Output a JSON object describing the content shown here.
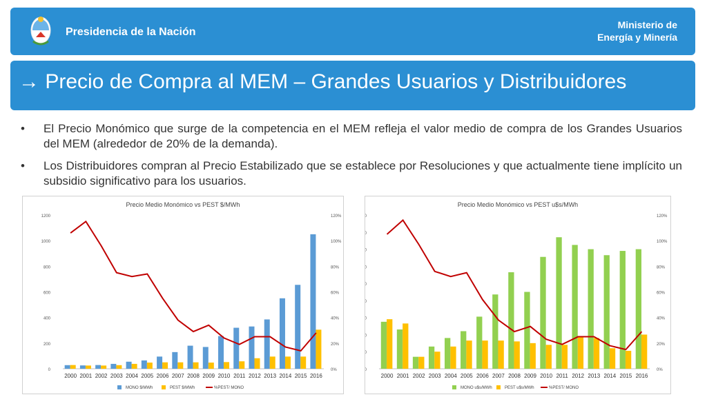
{
  "header": {
    "org": "Presidencia de la Nación",
    "ministry_line1": "Ministerio de",
    "ministry_line2": "Energía y Minería"
  },
  "title": "→ Precio de Compra al MEM – Grandes Usuarios y Distribuidores",
  "bullets": [
    "El Precio Monómico que surge de la competencia en el MEM refleja el valor medio de compra de los Grandes Usuarios del MEM (alrededor de 20% de la demanda).",
    "Los Distribuidores compran al Precio Estabilizado que se establece por Resoluciones y que actualmente tiene implícito un subsidio significativo para los usuarios."
  ],
  "bullet_symbol": "•",
  "chart_data": [
    {
      "type": "bar",
      "title": "Precio Medio Monómico vs PEST $/MWh",
      "categories": [
        "2000",
        "2001",
        "2002",
        "2003",
        "2004",
        "2005",
        "2006",
        "2007",
        "2008",
        "2009",
        "2010",
        "2011",
        "2012",
        "2013",
        "2014",
        "2015",
        "2016"
      ],
      "series": [
        {
          "name": "MONO $/MWh",
          "kind": "bar",
          "color": "#5b9bd5",
          "values": [
            28,
            26,
            29,
            38,
            55,
            65,
            95,
            130,
            180,
            170,
            255,
            320,
            330,
            385,
            550,
            655,
            1050
          ]
        },
        {
          "name": "PEST $/MWh",
          "kind": "bar",
          "color": "#ffc000",
          "values": [
            29,
            25,
            25,
            28,
            38,
            48,
            50,
            50,
            50,
            48,
            52,
            58,
            82,
            95,
            95,
            95,
            305
          ]
        },
        {
          "name": "%PEST/ MONO",
          "kind": "line",
          "axis": "right",
          "color": "#c00000",
          "values": [
            106,
            115,
            96,
            75,
            72,
            74,
            55,
            38,
            29,
            34,
            24,
            19,
            25,
            25,
            17,
            14,
            28
          ]
        }
      ],
      "ylim": [
        0,
        1200
      ],
      "yticks": [
        "0",
        "200",
        "400",
        "600",
        "800",
        "1000",
        "1200"
      ],
      "y2lim": [
        0,
        120
      ],
      "y2ticks": [
        "0%",
        "20%",
        "40%",
        "60%",
        "80%",
        "100%",
        "120%"
      ],
      "legend": "bottom"
    },
    {
      "type": "bar",
      "title": "Precio Medio Monómico vs PEST u$s/MWh",
      "categories": [
        "2000",
        "2001",
        "2002",
        "2003",
        "2004",
        "2005",
        "2006",
        "2007",
        "2008",
        "2009",
        "2010",
        "2011",
        "2012",
        "2013",
        "2014",
        "2015",
        "2016"
      ],
      "series": [
        {
          "name": "MONO u$s/MWh",
          "kind": "bar",
          "color": "#92d050",
          "values": [
            27.5,
            23,
            7,
            13,
            18,
            22,
            30.5,
            43.5,
            56.5,
            45,
            65.5,
            77,
            72.5,
            70,
            66.5,
            69,
            70
          ]
        },
        {
          "name": "PEST u$s/MWh",
          "kind": "bar",
          "color": "#ffc000",
          "values": [
            29,
            26.5,
            7,
            10,
            13,
            16.5,
            16.5,
            16.5,
            16,
            15,
            14,
            14,
            19,
            18,
            12,
            10.5,
            20
          ]
        },
        {
          "name": "%PEST/ MONO",
          "kind": "line",
          "axis": "right",
          "color": "#c00000",
          "values": [
            105,
            116,
            97,
            76,
            72,
            75,
            54,
            38,
            29,
            33,
            23,
            19,
            25,
            25,
            18,
            15,
            29
          ]
        }
      ],
      "ylim": [
        0,
        90
      ],
      "yticks": [
        "0",
        "10",
        "20",
        "30",
        "40",
        "50",
        "60",
        "70",
        "80",
        "90"
      ],
      "y2lim": [
        0,
        120
      ],
      "y2ticks": [
        "0%",
        "20%",
        "40%",
        "60%",
        "80%",
        "100%",
        "120%"
      ],
      "legend": "bottom"
    }
  ]
}
